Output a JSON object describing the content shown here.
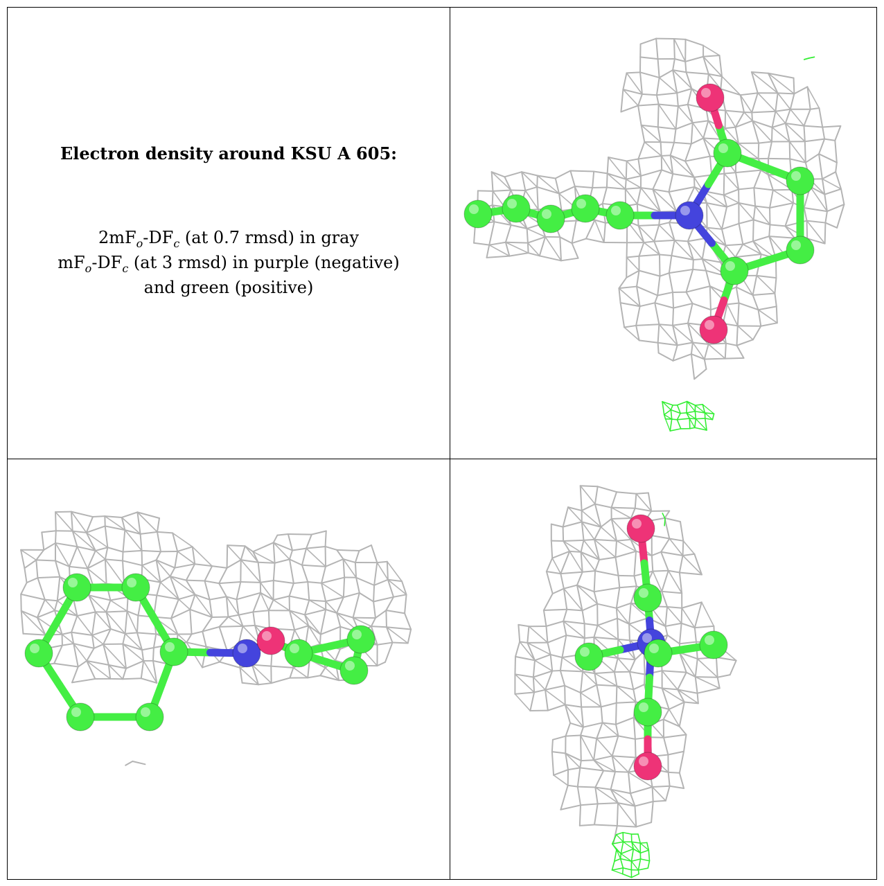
{
  "caption": {
    "title": "Electron density around KSU A 605:",
    "line1": {
      "a": "2mF",
      "a_sub": "o",
      "b": "-DF",
      "b_sub": "c",
      "rest": " (at 0.7 rmsd) in gray"
    },
    "line2": {
      "a": "mF",
      "a_sub": "o",
      "b": "-DF",
      "b_sub": "c",
      "rest": " (at 3 rmsd) in purple (negative)"
    },
    "line3": "and green (positive)"
  },
  "colors": {
    "mesh_gray": "#b4b4b4",
    "mesh_dark": "#7a7a7a",
    "mesh_green": "#33ee33",
    "carbon": "#44ee44",
    "nitrogen": "#4444dd",
    "oxygen": "#ee3377"
  },
  "icons": {
    "view_top_right": "density-view-side-icon",
    "view_bottom_left": "density-view-edge-icon",
    "view_bottom_right": "density-view-end-icon"
  }
}
